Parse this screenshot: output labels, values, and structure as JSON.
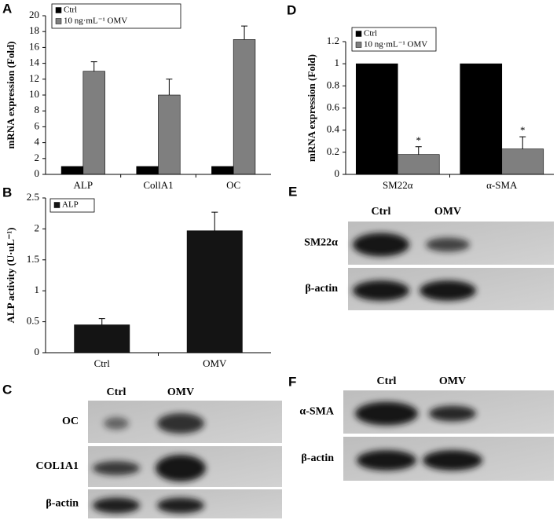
{
  "chart_data": [
    {
      "type": "bar",
      "panel": "A",
      "ylabel": "mRNA expression (Fold)",
      "categories": [
        "ALP",
        "CollA1",
        "OC"
      ],
      "series": [
        {
          "name": "Ctrl",
          "color": "#000000",
          "values": [
            1,
            1,
            1
          ]
        },
        {
          "name": "10 ng·mL⁻¹ OMV",
          "color": "#7f7f7f",
          "values": [
            13,
            10,
            17
          ],
          "errors": [
            1.2,
            2,
            1.7
          ]
        }
      ],
      "ylim": [
        0,
        20
      ],
      "yticks": [
        0,
        2,
        4,
        6,
        8,
        10,
        12,
        14,
        16,
        18,
        20
      ],
      "legend": "top-left"
    },
    {
      "type": "bar",
      "panel": "B",
      "ylabel": "ALP activity (U·uL⁻¹)",
      "categories": [
        "Ctrl",
        "OMV"
      ],
      "series": [
        {
          "name": "ALP",
          "color": "#141414",
          "values": [
            0.45,
            1.97
          ],
          "errors": [
            0.1,
            0.3
          ]
        }
      ],
      "ylim": [
        0,
        2.5
      ],
      "yticks": [
        0,
        0.5,
        1,
        1.5,
        2,
        2.5
      ],
      "legend": "top-left"
    },
    {
      "type": "bar",
      "panel": "D",
      "ylabel": "mRNA expression (Fold)",
      "categories": [
        "SM22α",
        "α-SMA"
      ],
      "series": [
        {
          "name": "Ctrl",
          "color": "#000000",
          "values": [
            1,
            1
          ]
        },
        {
          "name": "10 ng·mL⁻¹ OMV",
          "color": "#7f7f7f",
          "values": [
            0.18,
            0.23
          ],
          "errors": [
            0.07,
            0.11
          ],
          "markers": [
            "*",
            "*"
          ]
        }
      ],
      "ylim": [
        0,
        1.2
      ],
      "yticks": [
        0,
        0.2,
        0.4,
        0.6,
        0.8,
        1,
        1.2
      ],
      "legend": "top-left"
    }
  ],
  "blots": [
    {
      "panel": "C",
      "columns": [
        "Ctrl",
        "OMV"
      ],
      "rows": [
        "OC",
        "COL1A1",
        "β-actin"
      ]
    },
    {
      "panel": "E",
      "columns": [
        "Ctrl",
        "OMV"
      ],
      "rows": [
        "SM22α",
        "β-actin"
      ]
    },
    {
      "panel": "F",
      "columns": [
        "Ctrl",
        "OMV"
      ],
      "rows": [
        "α-SMA",
        "β-actin"
      ]
    }
  ]
}
